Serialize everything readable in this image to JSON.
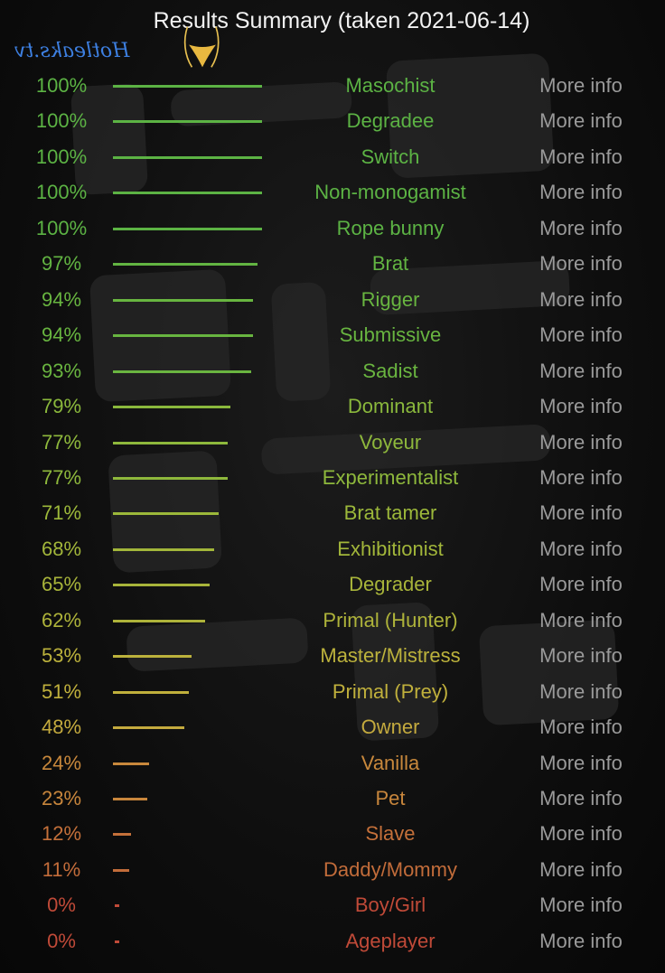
{
  "header": {
    "title": "Results Summary (taken 2021-06-14)"
  },
  "watermark": {
    "text": "Hotleaks.tv"
  },
  "more_info_label": "More info",
  "results": [
    {
      "percent": 100,
      "label": "100%",
      "name": "Masochist",
      "color": "#5cb344"
    },
    {
      "percent": 100,
      "label": "100%",
      "name": "Degradee",
      "color": "#5cb344"
    },
    {
      "percent": 100,
      "label": "100%",
      "name": "Switch",
      "color": "#5cb344"
    },
    {
      "percent": 100,
      "label": "100%",
      "name": "Non-monogamist",
      "color": "#5cb344"
    },
    {
      "percent": 100,
      "label": "100%",
      "name": "Rope bunny",
      "color": "#5cb344"
    },
    {
      "percent": 97,
      "label": "97%",
      "name": "Brat",
      "color": "#62b442"
    },
    {
      "percent": 94,
      "label": "94%",
      "name": "Rigger",
      "color": "#68b540"
    },
    {
      "percent": 94,
      "label": "94%",
      "name": "Submissive",
      "color": "#68b540"
    },
    {
      "percent": 93,
      "label": "93%",
      "name": "Sadist",
      "color": "#6ab540"
    },
    {
      "percent": 79,
      "label": "79%",
      "name": "Dominant",
      "color": "#8ab83c"
    },
    {
      "percent": 77,
      "label": "77%",
      "name": "Voyeur",
      "color": "#8eb83c"
    },
    {
      "percent": 77,
      "label": "77%",
      "name": "Experimentalist",
      "color": "#8eb83c"
    },
    {
      "percent": 71,
      "label": "71%",
      "name": "Brat tamer",
      "color": "#9cb83a"
    },
    {
      "percent": 68,
      "label": "68%",
      "name": "Exhibitionist",
      "color": "#a2b63a"
    },
    {
      "percent": 65,
      "label": "65%",
      "name": "Degrader",
      "color": "#a8b43a"
    },
    {
      "percent": 62,
      "label": "62%",
      "name": "Primal (Hunter)",
      "color": "#aeb33a"
    },
    {
      "percent": 53,
      "label": "53%",
      "name": "Master/Mistress",
      "color": "#bcb23c"
    },
    {
      "percent": 51,
      "label": "51%",
      "name": "Primal (Prey)",
      "color": "#c0b03c"
    },
    {
      "percent": 48,
      "label": "48%",
      "name": "Owner",
      "color": "#c4aa3e"
    },
    {
      "percent": 24,
      "label": "24%",
      "name": "Vanilla",
      "color": "#c8883c"
    },
    {
      "percent": 23,
      "label": "23%",
      "name": "Pet",
      "color": "#c8863c"
    },
    {
      "percent": 12,
      "label": "12%",
      "name": "Slave",
      "color": "#c4703a"
    },
    {
      "percent": 11,
      "label": "11%",
      "name": "Daddy/Mommy",
      "color": "#c26c3a"
    },
    {
      "percent": 0,
      "label": "0%",
      "name": "Boy/Girl",
      "color": "#c04a38"
    },
    {
      "percent": 0,
      "label": "0%",
      "name": "Ageplayer",
      "color": "#c04a38"
    }
  ]
}
